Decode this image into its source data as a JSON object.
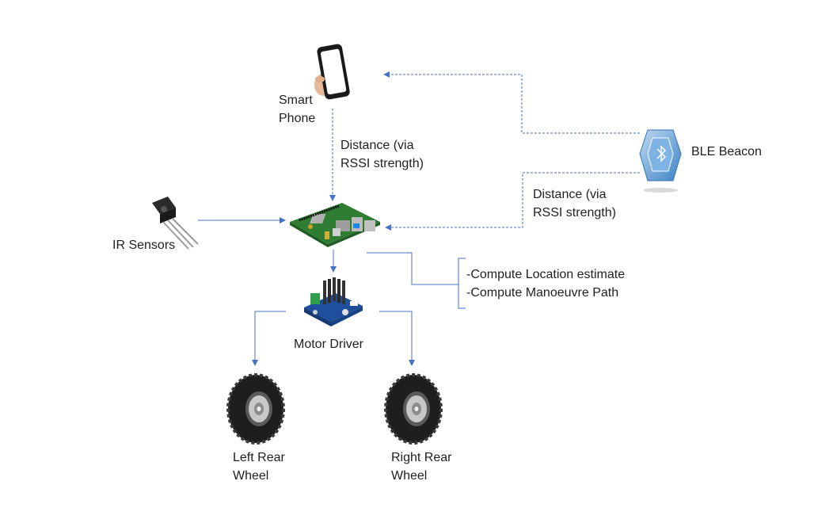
{
  "colors": {
    "arrow": "#4472c4",
    "text": "#1f1f1f",
    "beacon": "#5b9bd5",
    "pcb_green": "#2f7d32",
    "driver_blue": "#1f4e9c"
  },
  "nodes": {
    "smartphone": {
      "icon": "smartphone-icon",
      "label_lines": [
        "Smart",
        "Phone"
      ]
    },
    "ble_beacon": {
      "icon": "ble-beacon-icon",
      "label": "BLE Beacon"
    },
    "ir_sensors": {
      "icon": "ir-sensor-icon",
      "label": "IR Sensors"
    },
    "raspberry_pi": {
      "icon": "raspberry-pi-board-icon"
    },
    "motor_driver": {
      "icon": "motor-driver-board-icon",
      "label": "Motor Driver"
    },
    "left_wheel": {
      "icon": "wheel-icon",
      "label_lines": [
        "Left Rear",
        "Wheel"
      ]
    },
    "right_wheel": {
      "icon": "wheel-icon",
      "label_lines": [
        "Right Rear",
        "Wheel"
      ]
    }
  },
  "edge_labels": {
    "phone_distance": [
      "Distance (via",
      "RSSI strength)"
    ],
    "beacon_distance": [
      "Distance (via",
      "RSSI strength)"
    ]
  },
  "compute_note": {
    "lines": [
      "-Compute Location estimate",
      "-Compute Manoeuvre Path"
    ]
  }
}
